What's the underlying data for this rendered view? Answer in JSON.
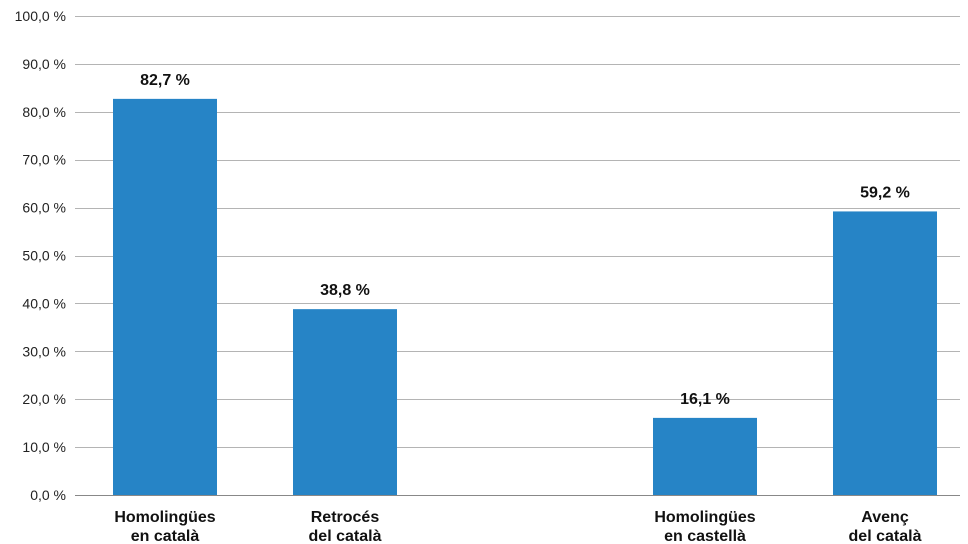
{
  "chart_data": {
    "type": "bar",
    "categories": [
      [
        "Homolingües",
        "en català"
      ],
      [
        "Retrocés",
        "del català"
      ],
      [
        "Homolingües",
        "en castellà"
      ],
      [
        "Avenç",
        "del català"
      ]
    ],
    "slots": [
      0,
      1,
      3,
      4
    ],
    "values": [
      82.7,
      38.8,
      16.1,
      59.2
    ],
    "data_labels": [
      "82,7 %",
      "38,8 %",
      "16,1 %",
      "59,2 %"
    ],
    "ylim": [
      0,
      100
    ],
    "yticks": [
      0,
      10,
      20,
      30,
      40,
      50,
      60,
      70,
      80,
      90,
      100
    ],
    "ytick_labels": [
      "0,0 %",
      "10,0 %",
      "20,0 %",
      "30,0 %",
      "40,0 %",
      "50,0 %",
      "60,0 %",
      "70,0 %",
      "80,0 %",
      "90,0 %",
      "100,0 %"
    ],
    "grid": true,
    "colors": {
      "bar": "#2684c6",
      "grid": "#b4b4b4",
      "axis": "#888888"
    }
  }
}
